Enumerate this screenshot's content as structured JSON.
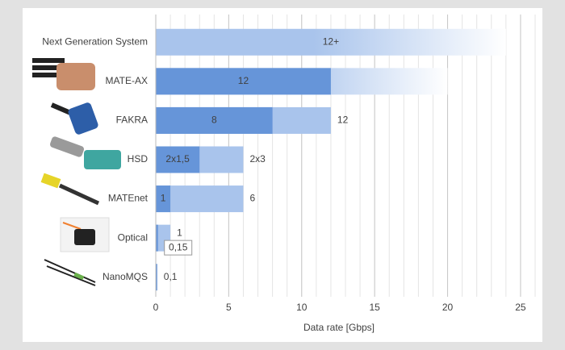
{
  "chart_data": {
    "type": "bar",
    "orientation": "horizontal",
    "x_label": "Data rate [Gbps]",
    "categories": [
      "Next Generation System",
      "MATE-AX",
      "FAKRA",
      "HSD",
      "MATEnet",
      "Optical",
      "NanoMQS"
    ],
    "series": [
      {
        "color": "#a9c4ec",
        "values": [
          24,
          20,
          12,
          6,
          6,
          1,
          null
        ],
        "value_labels": [
          null,
          null,
          "12",
          "2x3",
          "6",
          "1",
          null
        ],
        "faded": [
          true,
          true,
          false,
          false,
          false,
          false,
          false
        ]
      },
      {
        "color": "#6695d9",
        "values": [
          null,
          12,
          8,
          3,
          1,
          0.15,
          0.1
        ],
        "value_labels": [
          null,
          "12",
          "8",
          "2x1,5",
          "1",
          "0,15",
          "0,1"
        ]
      }
    ],
    "annotations": [
      {
        "text": "12+",
        "category": "Next Generation System"
      }
    ],
    "xlim": [
      0,
      26
    ],
    "xticks": [
      0,
      5,
      10,
      15,
      20,
      25
    ],
    "minor_grid_step": 1,
    "grid": true
  }
}
